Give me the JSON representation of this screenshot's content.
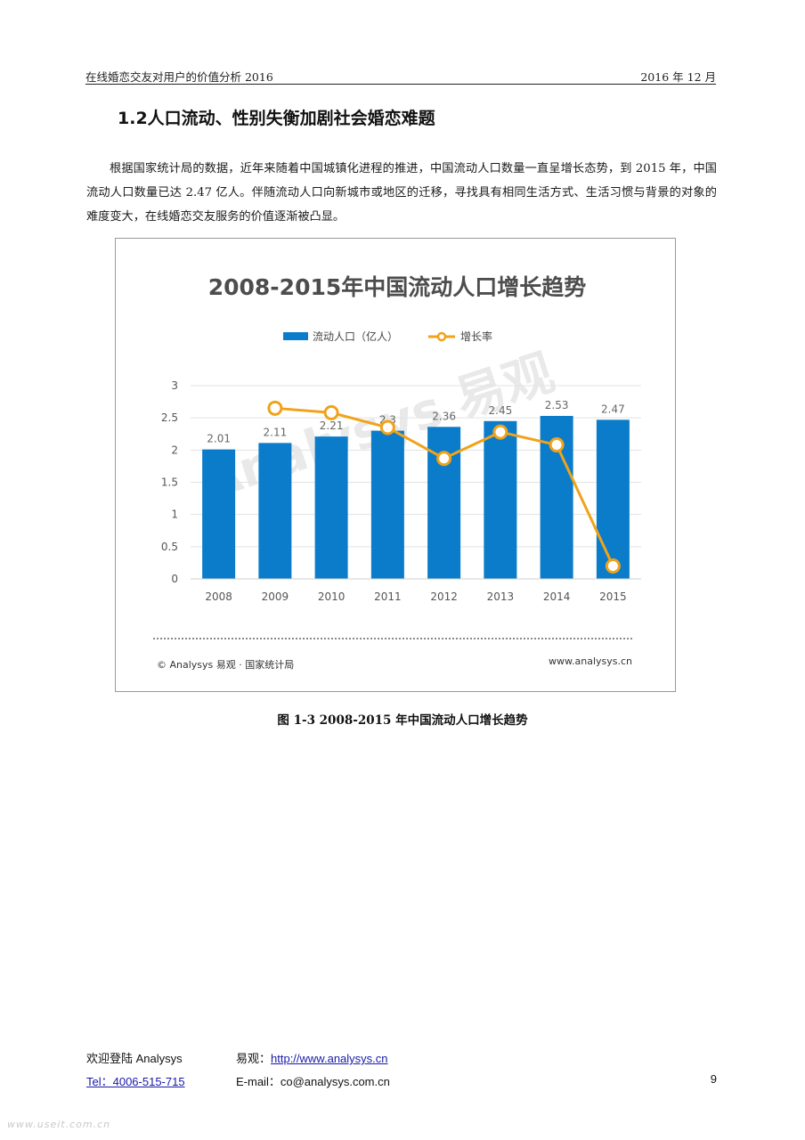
{
  "header": {
    "left": "在线婚恋交友对用户的价值分析 2016",
    "right": "2016 年 12 月"
  },
  "section": {
    "title": "1.2人口流动、性别失衡加剧社会婚恋难题",
    "paragraph": "根据国家统计局的数据，近年来随着中国城镇化进程的推进，中国流动人口数量一直呈增长态势，到 2015 年，中国流动人口数量已达 2.47 亿人。伴随流动人口向新城市或地区的迁移，寻找具有相同生活方式、生活习惯与背景的对象的难度变大，在线婚恋交友服务的价值逐渐被凸显。"
  },
  "chart_data": {
    "type": "bar",
    "title": "2008-2015年中国流动人口增长趋势",
    "categories": [
      "2008",
      "2009",
      "2010",
      "2011",
      "2012",
      "2013",
      "2014",
      "2015"
    ],
    "series": [
      {
        "name": "流动人口（亿人）",
        "type": "bar",
        "values": [
          2.01,
          2.11,
          2.21,
          2.3,
          2.36,
          2.45,
          2.53,
          2.47
        ],
        "color": "#0a7cc9"
      },
      {
        "name": "增长率",
        "type": "line",
        "values": [
          2.65,
          2.58,
          2.35,
          1.87,
          2.28,
          2.08,
          0.2
        ],
        "x": [
          "2009",
          "2010",
          "2011",
          "2012",
          "2013",
          "2014",
          "2015"
        ],
        "color": "#f0a31a"
      }
    ],
    "data_labels": [
      "2.01",
      "2.11",
      "2.21",
      "2.3",
      "2.36",
      "2.45",
      "2.53",
      "2.47"
    ],
    "y_ticks": [
      "0",
      "0.5",
      "1",
      "1.5",
      "2",
      "2.5",
      "3"
    ],
    "ylim": [
      0,
      3
    ],
    "grid": true,
    "legend_position": "top-center",
    "source_left": "© Analysys 易观 · 国家统计局",
    "source_right": "www.analysys.cn",
    "watermark": "Analysys 易观"
  },
  "caption": "图 1-3 2008-2015 年中国流动人口增长趋势",
  "footer": {
    "welcome": "欢迎登陆 Analysys",
    "site_label": "易观：",
    "site_url": "http://www.analysys.cn",
    "tel": "Tel：4006-515-715",
    "email": "E-mail：co@analysys.com.cn",
    "page": "9"
  },
  "watermark_url": "www.useit.com.cn"
}
